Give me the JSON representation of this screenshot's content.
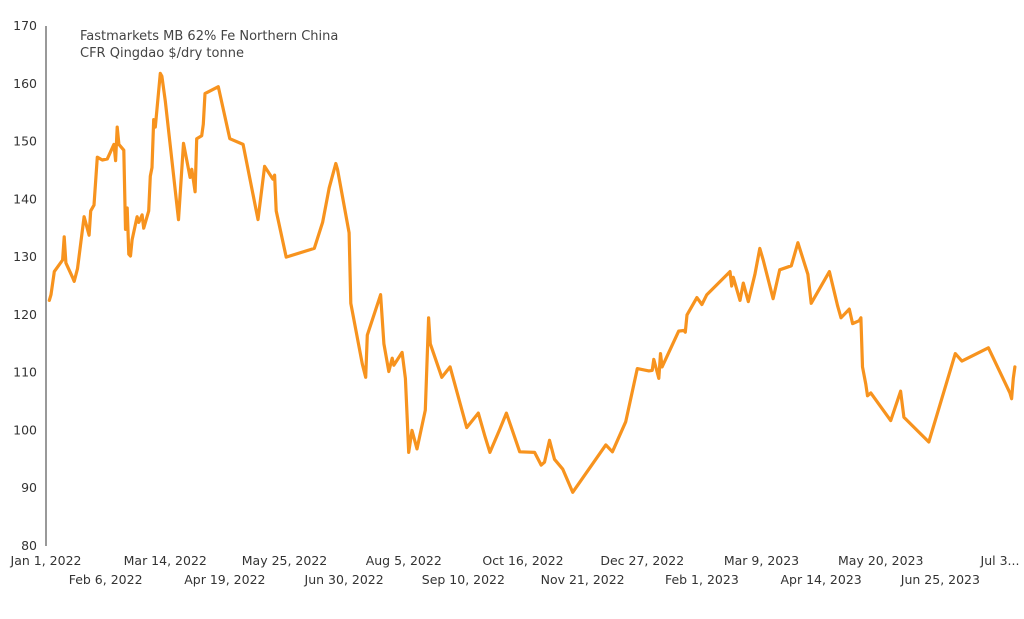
{
  "chart_data": {
    "type": "line",
    "title_lines": [
      "Fastmarkets MB 62% Fe Northern China",
      "CFR Qingdao $/dry tonne"
    ],
    "xlabel": "",
    "ylabel": "",
    "ylim": [
      80,
      170
    ],
    "y_ticks": [
      80,
      90,
      100,
      110,
      120,
      130,
      140,
      150,
      160,
      170
    ],
    "x_range": [
      "2022-01-01",
      "2023-07-31"
    ],
    "x_ticks": [
      {
        "date": "2022-01-01",
        "label": "Jan 1, 2022",
        "row": 0
      },
      {
        "date": "2022-02-06",
        "label": "Feb 6, 2022",
        "row": 1
      },
      {
        "date": "2022-03-14",
        "label": "Mar 14, 2022",
        "row": 0
      },
      {
        "date": "2022-04-19",
        "label": "Apr 19, 2022",
        "row": 1
      },
      {
        "date": "2022-05-25",
        "label": "May 25, 2022",
        "row": 0
      },
      {
        "date": "2022-06-30",
        "label": "Jun 30, 2022",
        "row": 1
      },
      {
        "date": "2022-08-05",
        "label": "Aug 5, 2022",
        "row": 0
      },
      {
        "date": "2022-09-10",
        "label": "Sep 10, 2022",
        "row": 1
      },
      {
        "date": "2022-10-16",
        "label": "Oct 16, 2022",
        "row": 0
      },
      {
        "date": "2022-11-21",
        "label": "Nov 21, 2022",
        "row": 1
      },
      {
        "date": "2022-12-27",
        "label": "Dec 27, 2022",
        "row": 0
      },
      {
        "date": "2023-02-01",
        "label": "Feb 1, 2023",
        "row": 1
      },
      {
        "date": "2023-03-09",
        "label": "Mar 9, 2023",
        "row": 0
      },
      {
        "date": "2023-04-14",
        "label": "Apr 14, 2023",
        "row": 1
      },
      {
        "date": "2023-05-20",
        "label": "May 20, 2023",
        "row": 0
      },
      {
        "date": "2023-06-25",
        "label": "Jun 25, 2023",
        "row": 1
      },
      {
        "date": "2023-07-31",
        "label": "Jul 3...",
        "row": 0
      }
    ],
    "grid": false,
    "legend": "none",
    "series": [
      {
        "color": "#F7931E",
        "points": [
          [
            "2022-01-03",
            122.5
          ],
          [
            "2022-01-04",
            123.5
          ],
          [
            "2022-01-06",
            127.5
          ],
          [
            "2022-01-11",
            129.5
          ],
          [
            "2022-01-12",
            133.5
          ],
          [
            "2022-01-13",
            129.0
          ],
          [
            "2022-01-17",
            126.5
          ],
          [
            "2022-01-18",
            125.8
          ],
          [
            "2022-01-20",
            128.0
          ],
          [
            "2022-01-24",
            137.0
          ],
          [
            "2022-01-27",
            133.8
          ],
          [
            "2022-01-28",
            138.0
          ],
          [
            "2022-01-30",
            139.0
          ],
          [
            "2022-02-01",
            147.3
          ],
          [
            "2022-02-04",
            146.8
          ],
          [
            "2022-02-07",
            147.0
          ],
          [
            "2022-02-11",
            149.5
          ],
          [
            "2022-02-12",
            146.7
          ],
          [
            "2022-02-13",
            152.5
          ],
          [
            "2022-02-14",
            149.5
          ],
          [
            "2022-02-17",
            148.5
          ],
          [
            "2022-02-18",
            134.8
          ],
          [
            "2022-02-19",
            138.5
          ],
          [
            "2022-02-20",
            130.5
          ],
          [
            "2022-02-21",
            130.2
          ],
          [
            "2022-02-22",
            133.0
          ],
          [
            "2022-02-25",
            137.0
          ],
          [
            "2022-02-26",
            136.0
          ],
          [
            "2022-02-28",
            137.3
          ],
          [
            "2022-03-01",
            135.0
          ],
          [
            "2022-03-04",
            138.0
          ],
          [
            "2022-03-05",
            144.0
          ],
          [
            "2022-03-06",
            145.5
          ],
          [
            "2022-03-07",
            153.8
          ],
          [
            "2022-03-08",
            152.5
          ],
          [
            "2022-03-11",
            161.8
          ],
          [
            "2022-03-12",
            161.3
          ],
          [
            "2022-03-14",
            157.0
          ],
          [
            "2022-03-22",
            136.5
          ],
          [
            "2022-03-25",
            149.7
          ],
          [
            "2022-03-29",
            143.8
          ],
          [
            "2022-03-30",
            145.2
          ],
          [
            "2022-04-01",
            141.3
          ],
          [
            "2022-04-02",
            150.5
          ],
          [
            "2022-04-05",
            151.0
          ],
          [
            "2022-04-06",
            153.0
          ],
          [
            "2022-04-07",
            158.3
          ],
          [
            "2022-04-15",
            159.5
          ],
          [
            "2022-04-22",
            150.5
          ],
          [
            "2022-04-30",
            149.5
          ],
          [
            "2022-05-09",
            136.5
          ],
          [
            "2022-05-13",
            145.7
          ],
          [
            "2022-05-18",
            143.5
          ],
          [
            "2022-05-19",
            144.2
          ],
          [
            "2022-05-20",
            138.0
          ],
          [
            "2022-05-26",
            130.0
          ],
          [
            "2022-06-12",
            131.5
          ],
          [
            "2022-06-17",
            136.0
          ],
          [
            "2022-06-21",
            142.0
          ],
          [
            "2022-06-25",
            146.2
          ],
          [
            "2022-06-26",
            145.2
          ],
          [
            "2022-07-03",
            134.2
          ],
          [
            "2022-07-04",
            122.0
          ],
          [
            "2022-07-11",
            111.5
          ],
          [
            "2022-07-13",
            109.2
          ],
          [
            "2022-07-14",
            116.5
          ],
          [
            "2022-07-22",
            123.5
          ],
          [
            "2022-07-24",
            115.0
          ],
          [
            "2022-07-27",
            110.2
          ],
          [
            "2022-07-29",
            112.5
          ],
          [
            "2022-07-30",
            111.3
          ],
          [
            "2022-08-04",
            113.5
          ],
          [
            "2022-08-06",
            109.0
          ],
          [
            "2022-08-07",
            102.5
          ],
          [
            "2022-08-08",
            96.2
          ],
          [
            "2022-08-10",
            100.0
          ],
          [
            "2022-08-13",
            96.8
          ],
          [
            "2022-08-18",
            103.5
          ],
          [
            "2022-08-20",
            119.5
          ],
          [
            "2022-08-21",
            115.0
          ],
          [
            "2022-08-28",
            109.2
          ],
          [
            "2022-09-02",
            111.0
          ],
          [
            "2022-09-12",
            100.5
          ],
          [
            "2022-09-19",
            103.0
          ],
          [
            "2022-09-23",
            99.0
          ],
          [
            "2022-09-26",
            96.2
          ],
          [
            "2022-10-02",
            100.2
          ],
          [
            "2022-10-06",
            103.0
          ],
          [
            "2022-10-14",
            96.3
          ],
          [
            "2022-10-23",
            96.2
          ],
          [
            "2022-10-27",
            94.0
          ],
          [
            "2022-10-29",
            94.5
          ],
          [
            "2022-11-01",
            98.3
          ],
          [
            "2022-11-04",
            95.0
          ],
          [
            "2022-11-09",
            93.3
          ],
          [
            "2022-11-15",
            89.3
          ],
          [
            "2022-12-05",
            97.5
          ],
          [
            "2022-12-09",
            96.3
          ],
          [
            "2022-12-17",
            101.5
          ],
          [
            "2022-12-24",
            110.7
          ],
          [
            "2022-12-31",
            110.3
          ],
          [
            "2023-01-02",
            110.4
          ],
          [
            "2023-01-03",
            112.3
          ],
          [
            "2023-01-06",
            109.0
          ],
          [
            "2023-01-07",
            113.3
          ],
          [
            "2023-01-08",
            111.0
          ],
          [
            "2023-01-18",
            117.2
          ],
          [
            "2023-01-21",
            117.3
          ],
          [
            "2023-01-22",
            117.0
          ],
          [
            "2023-01-23",
            120.0
          ],
          [
            "2023-01-29",
            123.0
          ],
          [
            "2023-02-01",
            121.8
          ],
          [
            "2023-02-04",
            123.5
          ],
          [
            "2023-02-18",
            127.5
          ],
          [
            "2023-02-19",
            125.0
          ],
          [
            "2023-02-20",
            126.5
          ],
          [
            "2023-02-24",
            122.5
          ],
          [
            "2023-02-26",
            125.5
          ],
          [
            "2023-03-01",
            122.3
          ],
          [
            "2023-03-05",
            127.0
          ],
          [
            "2023-03-08",
            131.5
          ],
          [
            "2023-03-10",
            129.5
          ],
          [
            "2023-03-16",
            122.8
          ],
          [
            "2023-03-20",
            127.8
          ],
          [
            "2023-03-27",
            128.5
          ],
          [
            "2023-03-31",
            132.5
          ],
          [
            "2023-04-06",
            127.0
          ],
          [
            "2023-04-08",
            122.0
          ],
          [
            "2023-04-19",
            127.5
          ],
          [
            "2023-04-24",
            121.5
          ],
          [
            "2023-04-26",
            119.5
          ],
          [
            "2023-05-01",
            121.0
          ],
          [
            "2023-05-03",
            118.5
          ],
          [
            "2023-05-07",
            119.0
          ],
          [
            "2023-05-08",
            119.5
          ],
          [
            "2023-05-09",
            111.0
          ],
          [
            "2023-05-11",
            108.0
          ],
          [
            "2023-05-12",
            106.0
          ],
          [
            "2023-05-14",
            106.5
          ],
          [
            "2023-05-26",
            101.7
          ],
          [
            "2023-06-01",
            106.8
          ],
          [
            "2023-06-03",
            102.3
          ],
          [
            "2023-06-18",
            98.0
          ],
          [
            "2023-07-04",
            113.3
          ],
          [
            "2023-07-08",
            112.0
          ],
          [
            "2023-07-24",
            114.3
          ],
          [
            "2023-08-06",
            106.5
          ],
          [
            "2023-08-07",
            105.5
          ],
          [
            "2023-08-08",
            109.0
          ],
          [
            "2023-08-09",
            111.0
          ]
        ]
      }
    ]
  }
}
